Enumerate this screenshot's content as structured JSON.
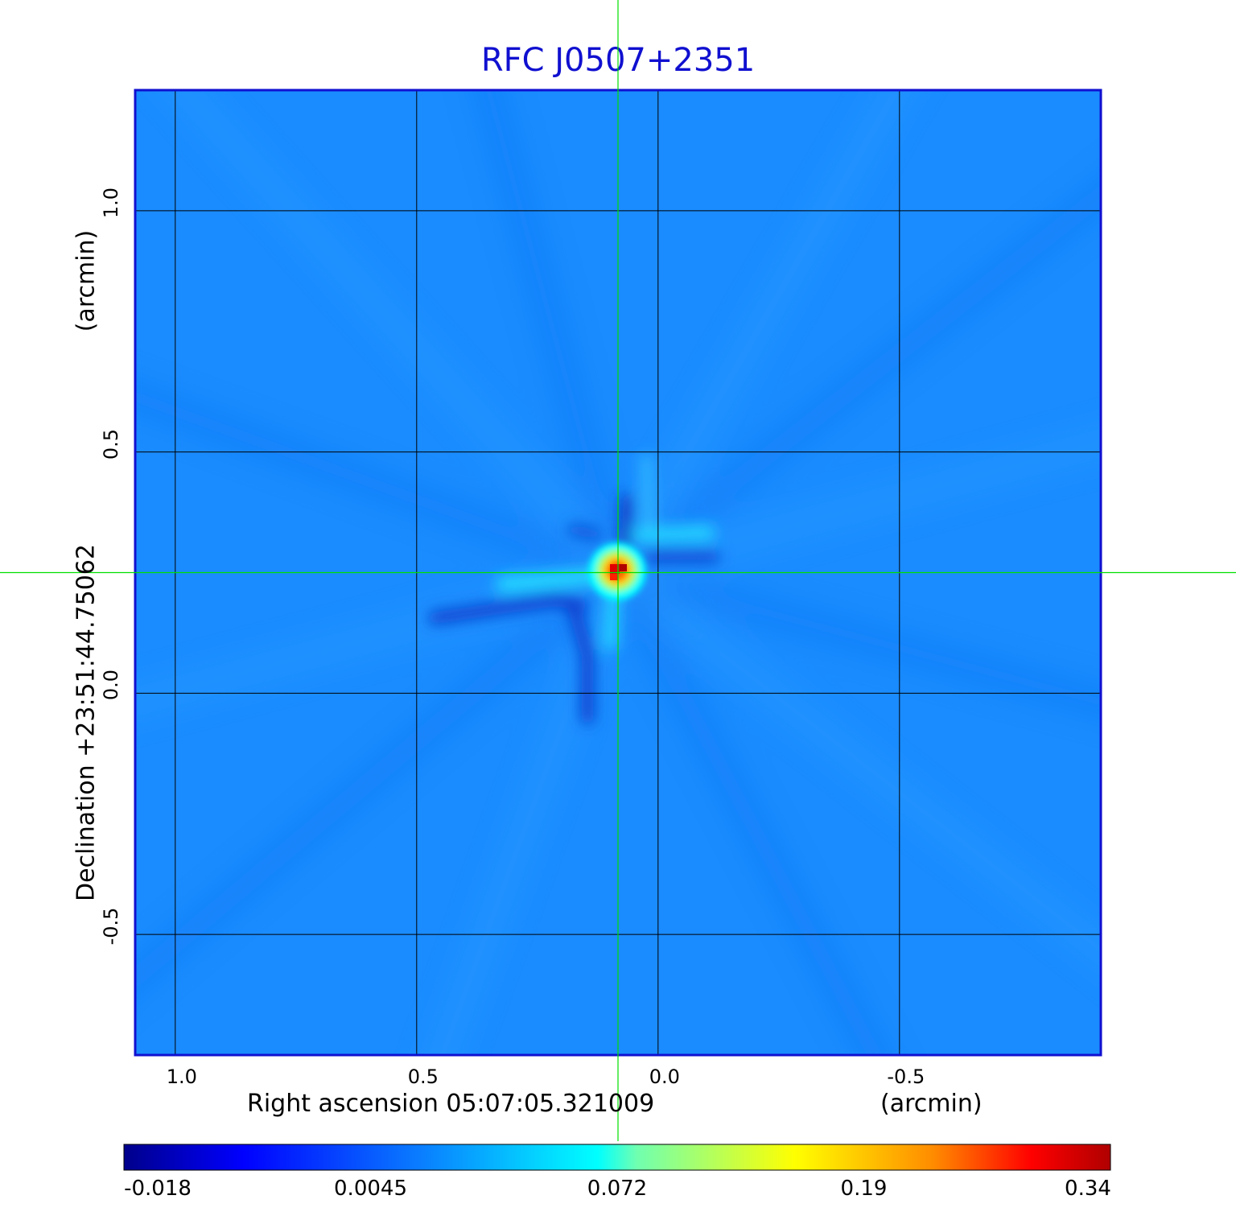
{
  "chart_data": {
    "type": "heatmap",
    "title": "RFC J0507+2351",
    "xlabel": "Right ascension  05:07:05.321009",
    "xunit": "(arcmin)",
    "ylabel": "Declination  +23:51:44.75062",
    "yunit": "(arcmin)",
    "x_range": [
      1.083,
      -0.917
    ],
    "y_range": [
      -0.75,
      1.25
    ],
    "x_ticks": [
      1.0,
      0.5,
      0.0,
      -0.5
    ],
    "x_tick_labels": [
      "1.0",
      "0.5",
      "0.0",
      "-0.5"
    ],
    "y_ticks": [
      1.0,
      0.5,
      0.0,
      -0.5
    ],
    "y_tick_labels": [
      "1.0",
      "0.5",
      "0.0",
      "-0.5"
    ],
    "grid": true,
    "crosshair": {
      "x": 0.083,
      "y": 0.25,
      "color": "#00e000"
    },
    "peak": {
      "x": 0.083,
      "y": 0.25,
      "value": 0.34
    },
    "colormap": "jet",
    "colorbar_ticks": [
      "-0.018",
      "0.0045",
      "0.072",
      "0.19",
      "0.34"
    ],
    "colorbar_range": [
      -0.018,
      0.34
    ],
    "frame_color": "#1010d0",
    "background_color": "#1a8cff"
  }
}
